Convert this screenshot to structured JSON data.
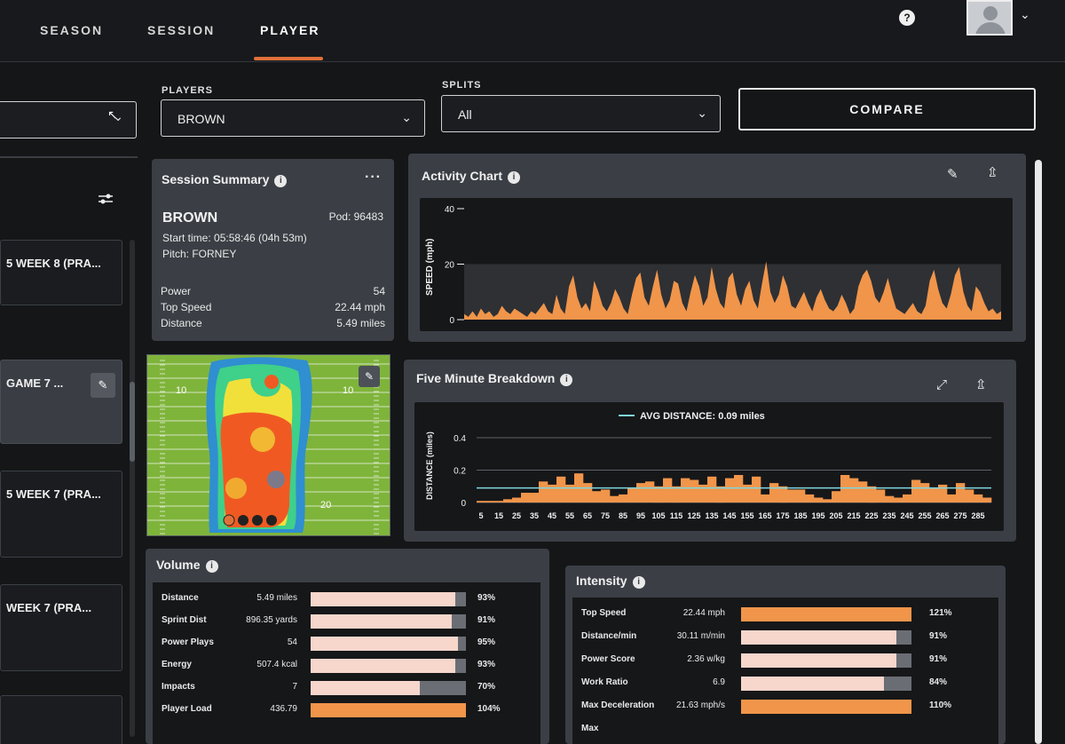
{
  "nav": {
    "tabs": [
      "SEASON",
      "SESSION",
      "PLAYER"
    ],
    "active_tab": "PLAYER",
    "help": "?"
  },
  "filters": {
    "players_label": "PLAYERS",
    "player_value": "BROWN",
    "splits_label": "SPLITS",
    "splits_value": "All",
    "compare_label": "COMPARE"
  },
  "sessions_list": [
    {
      "label": "5 WEEK 8 (PRA..."
    },
    {
      "label": "GAME 7 ..."
    },
    {
      "label": "5 WEEK 7 (PRA..."
    },
    {
      "label": "WEEK 7 (PRA..."
    }
  ],
  "session_summary": {
    "title": "Session Summary",
    "player": "BROWN",
    "pod": "Pod: 96483",
    "start_time": "Start time: 05:58:46 (04h 53m)",
    "pitch": "Pitch: FORNEY",
    "stats": [
      {
        "label": "Power",
        "value": "54"
      },
      {
        "label": "Top Speed",
        "value": "22.44 mph"
      },
      {
        "label": "Distance",
        "value": "5.49 miles"
      }
    ]
  },
  "activity_chart": {
    "title": "Activity Chart",
    "ylabel": "SPEED (mph)",
    "yticks": [
      "40",
      "20",
      "0"
    ]
  },
  "five_minute": {
    "title": "Five Minute Breakdown",
    "legend": "AVG DISTANCE: 0.09 miles",
    "ylabel": "DISTANCE (miles)"
  },
  "chart_data": [
    {
      "type": "area",
      "title": "Activity Chart",
      "ylabel": "SPEED (mph)",
      "ylim": [
        0,
        40
      ],
      "yticks": [
        0,
        20,
        40
      ],
      "color": "#f0954a",
      "values": [
        2,
        1,
        3,
        1,
        4,
        2,
        3,
        1,
        2,
        5,
        3,
        2,
        4,
        3,
        2,
        1,
        3,
        2,
        4,
        6,
        3,
        2,
        9,
        4,
        2,
        12,
        16,
        8,
        4,
        6,
        3,
        14,
        10,
        5,
        3,
        6,
        11,
        8,
        4,
        2,
        9,
        15,
        17,
        8,
        5,
        12,
        18,
        9,
        4,
        7,
        14,
        13,
        6,
        3,
        10,
        16,
        12,
        5,
        8,
        19,
        11,
        6,
        4,
        15,
        17,
        9,
        5,
        11,
        14,
        7,
        4,
        13,
        21,
        10,
        6,
        9,
        16,
        12,
        5,
        4,
        7,
        10,
        6,
        3,
        8,
        11,
        7,
        4,
        3,
        5,
        9,
        6,
        2,
        4,
        12,
        16,
        18,
        14,
        8,
        6,
        10,
        15,
        9,
        4,
        3,
        2,
        4,
        6,
        3,
        2,
        5,
        14,
        18,
        11,
        6,
        4,
        9,
        16,
        19,
        10,
        5,
        3,
        12,
        10,
        6,
        3,
        4,
        2,
        3
      ]
    },
    {
      "type": "bar",
      "title": "Five Minute Breakdown",
      "ylabel": "DISTANCE (miles)",
      "ylim": [
        0,
        0.4
      ],
      "yticks": [
        0,
        0.2,
        0.4
      ],
      "avg_line": 0.09,
      "color": "#f0954a",
      "x": [
        5,
        10,
        15,
        20,
        25,
        30,
        35,
        40,
        45,
        50,
        55,
        60,
        65,
        70,
        75,
        80,
        85,
        90,
        95,
        100,
        105,
        110,
        115,
        120,
        125,
        130,
        135,
        140,
        145,
        150,
        155,
        160,
        165,
        170,
        175,
        180,
        185,
        190,
        195,
        200,
        205,
        210,
        215,
        220,
        225,
        230,
        235,
        240,
        245,
        250,
        255,
        260,
        265,
        270,
        275,
        280,
        285,
        290
      ],
      "x_tick_labels": [
        "5",
        "15",
        "25",
        "35",
        "45",
        "55",
        "65",
        "75",
        "85",
        "95",
        "105",
        "115",
        "125",
        "135",
        "145",
        "155",
        "165",
        "175",
        "185",
        "195",
        "205",
        "215",
        "225",
        "235",
        "245",
        "255",
        "265",
        "275",
        "285"
      ],
      "values": [
        0.01,
        0.01,
        0.01,
        0.02,
        0.03,
        0.06,
        0.06,
        0.13,
        0.11,
        0.16,
        0.11,
        0.18,
        0.12,
        0.07,
        0.08,
        0.04,
        0.05,
        0.09,
        0.12,
        0.13,
        0.1,
        0.15,
        0.1,
        0.15,
        0.14,
        0.11,
        0.16,
        0.1,
        0.15,
        0.17,
        0.11,
        0.16,
        0.05,
        0.12,
        0.1,
        0.08,
        0.08,
        0.05,
        0.03,
        0.02,
        0.07,
        0.17,
        0.15,
        0.13,
        0.1,
        0.08,
        0.04,
        0.03,
        0.05,
        0.14,
        0.12,
        0.09,
        0.11,
        0.05,
        0.12,
        0.08,
        0.05,
        0.03
      ]
    }
  ],
  "volume": {
    "title": "Volume",
    "rows": [
      {
        "label": "Distance",
        "value": "5.49 miles",
        "pct": "93%",
        "fill": 0.93,
        "color": "#f7d6cc"
      },
      {
        "label": "Sprint Dist",
        "value": "896.35 yards",
        "pct": "91%",
        "fill": 0.91,
        "color": "#f7d6cc"
      },
      {
        "label": "Power Plays",
        "value": "54",
        "pct": "95%",
        "fill": 0.95,
        "color": "#f7d6cc"
      },
      {
        "label": "Energy",
        "value": "507.4 kcal",
        "pct": "93%",
        "fill": 0.93,
        "color": "#f7d6cc"
      },
      {
        "label": "Impacts",
        "value": "7",
        "pct": "70%",
        "fill": 0.7,
        "color": "#f7d6cc"
      },
      {
        "label": "Player Load",
        "value": "436.79",
        "pct": "104%",
        "fill": 1.0,
        "color": "#f0954a"
      }
    ]
  },
  "intensity": {
    "title": "Intensity",
    "rows": [
      {
        "label": "Top Speed",
        "value": "22.44 mph",
        "pct": "121%",
        "fill": 1.0,
        "color": "#f0954a"
      },
      {
        "label": "Distance/min",
        "value": "30.11 m/min",
        "pct": "91%",
        "fill": 0.91,
        "color": "#f7d6cc"
      },
      {
        "label": "Power Score",
        "value": "2.36 w/kg",
        "pct": "91%",
        "fill": 0.91,
        "color": "#f7d6cc"
      },
      {
        "label": "Work Ratio",
        "value": "6.9",
        "pct": "84%",
        "fill": 0.84,
        "color": "#f7d6cc"
      },
      {
        "label": "Max Deceleration",
        "value": "21.63 mph/s",
        "pct": "110%",
        "fill": 1.0,
        "color": "#f0954a"
      },
      {
        "label": "Max",
        "value": "",
        "pct": "",
        "fill": 0,
        "color": "#f7d6cc"
      }
    ]
  },
  "field_map": {
    "yard_labels": [
      "10",
      "10",
      "20"
    ]
  }
}
